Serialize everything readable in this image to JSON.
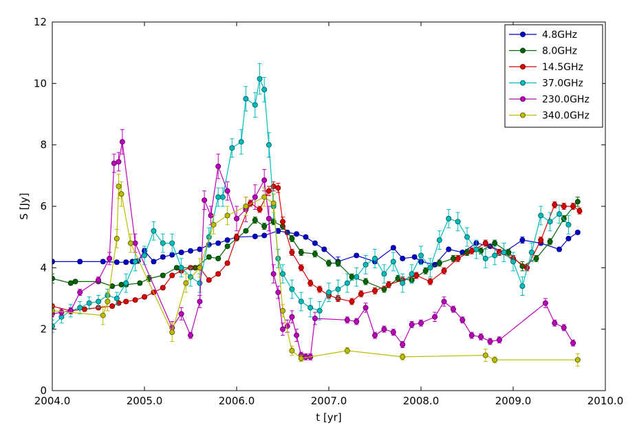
{
  "chart_data": {
    "type": "line",
    "xlabel": "t [yr]",
    "ylabel": "S [Jy]",
    "xlim": [
      2004.0,
      2010.0
    ],
    "ylim": [
      0,
      12
    ],
    "xticks": [
      2004.0,
      2005.0,
      2006.0,
      2007.0,
      2008.0,
      2009.0,
      2010.0
    ],
    "xtick_labels": [
      "2004.0",
      "2005.0",
      "2006.0",
      "2007.0",
      "2008.0",
      "2009.0",
      "2010.0"
    ],
    "yticks": [
      0,
      2,
      4,
      6,
      8,
      10,
      12
    ],
    "ytick_labels": [
      "0",
      "2",
      "4",
      "6",
      "8",
      "10",
      "12"
    ],
    "grid": false,
    "legend_position": "top-right",
    "series": [
      {
        "name": "4.8GHz",
        "color": "#0000cc",
        "x": [
          2004.0,
          2004.3,
          2004.55,
          2004.7,
          2004.8,
          2004.87,
          2004.93,
          2005.0,
          2005.1,
          2005.2,
          2005.3,
          2005.4,
          2005.5,
          2005.6,
          2005.7,
          2005.8,
          2005.9,
          2006.0,
          2006.2,
          2006.3,
          2006.45,
          2006.55,
          2006.65,
          2006.75,
          2006.85,
          2006.95,
          2007.1,
          2007.3,
          2007.5,
          2007.7,
          2007.8,
          2007.93,
          2008.0,
          2008.15,
          2008.3,
          2008.45,
          2008.6,
          2008.75,
          2008.9,
          2009.1,
          2009.3,
          2009.5,
          2009.6,
          2009.7
        ],
        "y": [
          4.2,
          4.2,
          4.2,
          4.18,
          4.18,
          4.2,
          4.22,
          4.55,
          4.2,
          4.35,
          4.42,
          4.5,
          4.55,
          4.6,
          4.75,
          4.8,
          4.9,
          5.0,
          5.02,
          5.05,
          5.2,
          5.15,
          5.1,
          5.0,
          4.8,
          4.6,
          4.2,
          4.4,
          4.2,
          4.65,
          4.3,
          4.35,
          4.2,
          4.1,
          4.6,
          4.5,
          4.8,
          4.7,
          4.5,
          4.9,
          4.8,
          4.6,
          4.95,
          5.15
        ],
        "err": [
          0.06,
          0.06,
          0.06,
          0.06,
          0.06,
          0.06,
          0.06,
          0.08,
          0.06,
          0.06,
          0.06,
          0.06,
          0.06,
          0.06,
          0.06,
          0.06,
          0.06,
          0.06,
          0.06,
          0.06,
          0.08,
          0.06,
          0.06,
          0.06,
          0.06,
          0.06,
          0.15,
          0.06,
          0.06,
          0.06,
          0.06,
          0.06,
          0.06,
          0.06,
          0.06,
          0.06,
          0.06,
          0.06,
          0.06,
          0.1,
          0.06,
          0.06,
          0.06,
          0.06
        ]
      },
      {
        "name": "8.0GHz",
        "color": "#006600",
        "x": [
          2004.0,
          2004.2,
          2004.25,
          2004.5,
          2004.65,
          2004.75,
          2004.8,
          2004.95,
          2005.05,
          2005.2,
          2005.35,
          2005.55,
          2005.7,
          2005.8,
          2005.9,
          2006.0,
          2006.1,
          2006.2,
          2006.3,
          2006.4,
          2006.5,
          2006.6,
          2006.7,
          2006.85,
          2007.0,
          2007.1,
          2007.25,
          2007.4,
          2007.6,
          2007.75,
          2007.9,
          2008.05,
          2008.2,
          2008.35,
          2008.5,
          2008.65,
          2008.8,
          2008.95,
          2009.1,
          2009.25,
          2009.4,
          2009.55,
          2009.7
        ],
        "y": [
          3.65,
          3.5,
          3.55,
          3.55,
          3.4,
          3.45,
          3.45,
          3.5,
          3.65,
          3.75,
          4.0,
          4.0,
          4.35,
          4.3,
          4.7,
          4.95,
          5.2,
          5.55,
          5.35,
          5.5,
          5.35,
          4.95,
          4.5,
          4.45,
          4.15,
          4.15,
          3.7,
          3.55,
          3.3,
          3.65,
          3.6,
          3.9,
          4.15,
          4.3,
          4.5,
          4.55,
          4.8,
          4.5,
          4.05,
          4.3,
          4.85,
          5.6,
          6.15
        ],
        "err": [
          0.15,
          0.06,
          0.06,
          0.06,
          0.06,
          0.06,
          0.06,
          0.06,
          0.1,
          0.06,
          0.06,
          0.06,
          0.06,
          0.06,
          0.06,
          0.06,
          0.06,
          0.1,
          0.1,
          0.1,
          0.1,
          0.1,
          0.1,
          0.1,
          0.1,
          0.1,
          0.1,
          0.1,
          0.1,
          0.1,
          0.1,
          0.1,
          0.1,
          0.1,
          0.1,
          0.1,
          0.1,
          0.1,
          0.15,
          0.1,
          0.1,
          0.1,
          0.15
        ]
      },
      {
        "name": "14.5GHz",
        "color": "#dd0000",
        "x": [
          2004.0,
          2004.2,
          2004.35,
          2004.5,
          2004.65,
          2004.72,
          2004.8,
          2004.9,
          2005.0,
          2005.1,
          2005.2,
          2005.3,
          2005.4,
          2005.5,
          2005.6,
          2005.7,
          2005.8,
          2005.9,
          2006.0,
          2006.15,
          2006.25,
          2006.35,
          2006.4,
          2006.45,
          2006.5,
          2006.6,
          2006.7,
          2006.8,
          2006.9,
          2007.0,
          2007.1,
          2007.25,
          2007.35,
          2007.5,
          2007.65,
          2007.8,
          2007.95,
          2008.1,
          2008.25,
          2008.4,
          2008.55,
          2008.7,
          2008.85,
          2009.0,
          2009.15,
          2009.3,
          2009.45,
          2009.55,
          2009.65,
          2009.72
        ],
        "y": [
          2.75,
          2.6,
          2.65,
          2.7,
          2.75,
          2.85,
          2.9,
          2.95,
          3.05,
          3.2,
          3.35,
          3.75,
          3.9,
          4.0,
          4.0,
          3.6,
          3.8,
          4.15,
          5.0,
          6.1,
          5.9,
          6.5,
          6.65,
          6.6,
          5.5,
          4.5,
          4.0,
          3.5,
          3.3,
          3.1,
          3.0,
          2.9,
          3.15,
          3.25,
          3.45,
          3.6,
          3.75,
          3.55,
          3.9,
          4.3,
          4.55,
          4.8,
          4.5,
          4.3,
          4.0,
          4.9,
          6.05,
          6.0,
          6.0,
          5.85
        ],
        "err": [
          0.06,
          0.06,
          0.06,
          0.06,
          0.06,
          0.06,
          0.06,
          0.06,
          0.06,
          0.06,
          0.06,
          0.06,
          0.06,
          0.06,
          0.06,
          0.06,
          0.06,
          0.06,
          0.1,
          0.1,
          0.1,
          0.15,
          0.15,
          0.15,
          0.15,
          0.1,
          0.1,
          0.1,
          0.1,
          0.1,
          0.1,
          0.1,
          0.1,
          0.1,
          0.1,
          0.1,
          0.1,
          0.1,
          0.1,
          0.1,
          0.1,
          0.1,
          0.1,
          0.1,
          0.1,
          0.1,
          0.1,
          0.1,
          0.1,
          0.1
        ]
      },
      {
        "name": "37.0GHz",
        "color": "#00bbbb",
        "x": [
          2004.0,
          2004.1,
          2004.2,
          2004.3,
          2004.4,
          2004.5,
          2004.6,
          2004.7,
          2004.8,
          2004.9,
          2005.0,
          2005.1,
          2005.2,
          2005.3,
          2005.4,
          2005.5,
          2005.6,
          2005.7,
          2005.8,
          2005.85,
          2005.95,
          2006.05,
          2006.1,
          2006.2,
          2006.25,
          2006.3,
          2006.35,
          2006.4,
          2006.45,
          2006.5,
          2006.6,
          2006.7,
          2006.8,
          2006.9,
          2007.0,
          2007.1,
          2007.2,
          2007.3,
          2007.4,
          2007.5,
          2007.6,
          2007.7,
          2007.8,
          2007.9,
          2008.0,
          2008.1,
          2008.2,
          2008.3,
          2008.4,
          2008.5,
          2008.6,
          2008.7,
          2008.8,
          2008.9,
          2009.0,
          2009.1,
          2009.2,
          2009.3,
          2009.4,
          2009.5,
          2009.6
        ],
        "y": [
          2.1,
          2.4,
          2.6,
          2.7,
          2.85,
          2.9,
          3.1,
          3.0,
          3.5,
          4.2,
          4.4,
          5.2,
          4.8,
          4.8,
          4.0,
          3.7,
          3.5,
          5.0,
          6.3,
          6.3,
          7.9,
          8.1,
          9.5,
          9.3,
          10.15,
          9.8,
          8.0,
          6.0,
          4.3,
          3.8,
          3.3,
          2.9,
          2.7,
          2.6,
          3.2,
          3.3,
          3.5,
          3.7,
          4.1,
          4.3,
          3.8,
          4.2,
          3.5,
          3.8,
          4.4,
          4.0,
          4.9,
          5.6,
          5.5,
          5.0,
          4.6,
          4.3,
          4.4,
          4.5,
          4.2,
          3.4,
          4.5,
          5.7,
          5.5,
          5.75,
          5.4
        ],
        "err": [
          0.2,
          0.2,
          0.2,
          0.2,
          0.2,
          0.2,
          0.2,
          0.2,
          0.3,
          0.3,
          0.3,
          0.3,
          0.3,
          0.3,
          0.3,
          0.3,
          0.3,
          0.3,
          0.3,
          0.3,
          0.3,
          0.4,
          0.4,
          0.4,
          0.5,
          0.4,
          0.4,
          0.4,
          0.3,
          0.3,
          0.3,
          0.3,
          0.3,
          0.3,
          0.3,
          0.3,
          0.3,
          0.3,
          0.3,
          0.3,
          0.3,
          0.3,
          0.3,
          0.3,
          0.3,
          0.3,
          0.3,
          0.3,
          0.3,
          0.3,
          0.3,
          0.3,
          0.3,
          0.3,
          0.3,
          0.3,
          0.3,
          0.3,
          0.3,
          0.3,
          0.3
        ]
      },
      {
        "name": "230.0GHz",
        "color": "#bb00bb",
        "x": [
          2004.0,
          2004.1,
          2004.2,
          2004.3,
          2004.5,
          2004.62,
          2004.67,
          2004.72,
          2004.76,
          2004.9,
          2005.3,
          2005.4,
          2005.5,
          2005.6,
          2005.65,
          2005.72,
          2005.8,
          2005.9,
          2006.0,
          2006.1,
          2006.2,
          2006.3,
          2006.35,
          2006.4,
          2006.45,
          2006.5,
          2006.55,
          2006.6,
          2006.65,
          2006.7,
          2006.75,
          2006.8,
          2006.85,
          2007.2,
          2007.3,
          2007.4,
          2007.5,
          2007.6,
          2007.7,
          2007.8,
          2007.9,
          2008.0,
          2008.15,
          2008.25,
          2008.35,
          2008.45,
          2008.55,
          2008.65,
          2008.75,
          2008.85,
          2009.35,
          2009.45,
          2009.55,
          2009.65
        ],
        "y": [
          2.5,
          2.55,
          2.6,
          3.2,
          3.6,
          4.3,
          7.4,
          7.45,
          8.1,
          4.8,
          2.05,
          2.5,
          1.8,
          2.9,
          6.2,
          5.7,
          7.3,
          6.5,
          5.6,
          5.9,
          6.3,
          6.85,
          5.6,
          3.8,
          3.2,
          2.0,
          2.1,
          2.4,
          1.8,
          1.15,
          1.1,
          1.1,
          2.35,
          2.3,
          2.25,
          2.7,
          1.8,
          2.0,
          1.9,
          1.5,
          2.15,
          2.2,
          2.4,
          2.9,
          2.65,
          2.3,
          1.8,
          1.75,
          1.6,
          1.65,
          2.85,
          2.2,
          2.05,
          1.55
        ],
        "err": [
          0.1,
          0.1,
          0.1,
          0.1,
          0.1,
          0.2,
          0.3,
          0.3,
          0.4,
          0.3,
          0.2,
          0.2,
          0.1,
          0.2,
          0.3,
          0.3,
          0.4,
          0.3,
          0.4,
          0.4,
          0.4,
          0.35,
          0.4,
          0.3,
          0.2,
          0.2,
          0.2,
          0.2,
          0.2,
          0.1,
          0.1,
          0.1,
          0.2,
          0.1,
          0.1,
          0.15,
          0.1,
          0.1,
          0.1,
          0.1,
          0.1,
          0.1,
          0.15,
          0.15,
          0.1,
          0.1,
          0.1,
          0.1,
          0.1,
          0.1,
          0.15,
          0.1,
          0.1,
          0.1
        ]
      },
      {
        "name": "340.0GHz",
        "color": "#bbbb00",
        "x": [
          2004.0,
          2004.55,
          2004.6,
          2004.7,
          2004.72,
          2004.75,
          2004.85,
          2005.3,
          2005.45,
          2005.6,
          2005.75,
          2005.9,
          2006.1,
          2006.3,
          2006.4,
          2006.5,
          2006.6,
          2006.7,
          2007.2,
          2007.8,
          2008.7,
          2008.8,
          2009.7
        ],
        "y": [
          2.6,
          2.45,
          2.9,
          4.95,
          6.65,
          6.4,
          4.8,
          1.9,
          3.5,
          4.0,
          5.4,
          5.7,
          6.0,
          6.3,
          6.1,
          2.6,
          1.3,
          1.05,
          1.3,
          1.1,
          1.15,
          1.0,
          1.0
        ],
        "err": [
          0.15,
          0.3,
          0.3,
          0.3,
          0.4,
          0.4,
          0.3,
          0.3,
          0.3,
          0.3,
          0.3,
          0.3,
          0.3,
          0.3,
          0.3,
          0.2,
          0.15,
          0.1,
          0.1,
          0.1,
          0.2,
          0.1,
          0.2
        ]
      }
    ]
  }
}
